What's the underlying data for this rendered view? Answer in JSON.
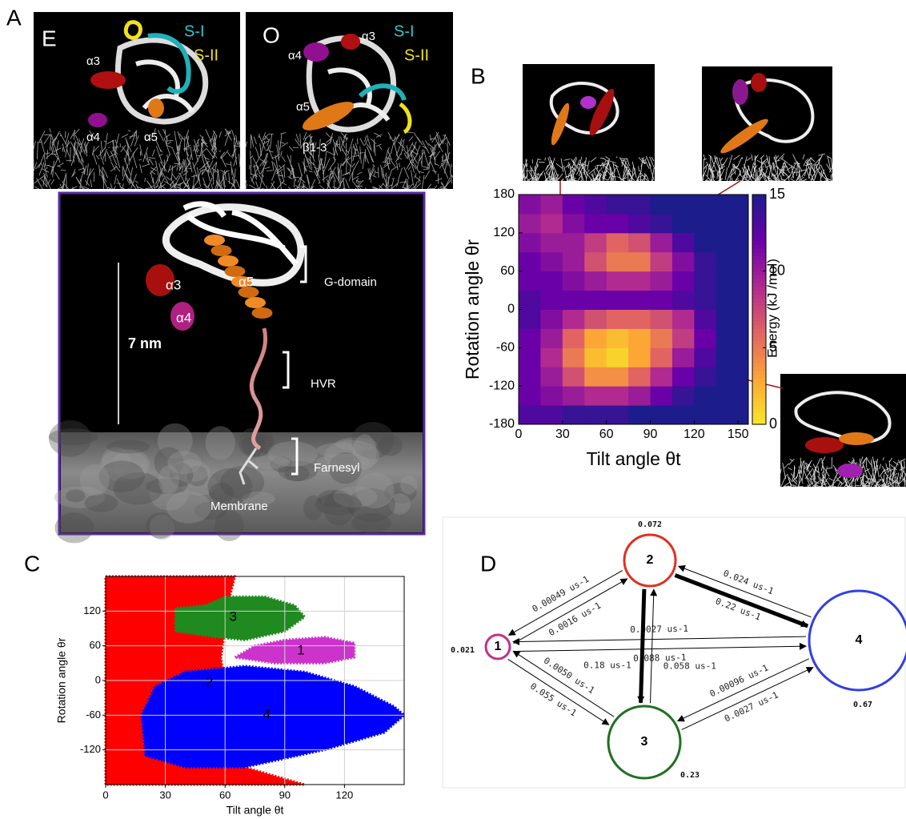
{
  "panel_labels": {
    "a": "A",
    "b": "B",
    "c": "C",
    "d": "D"
  },
  "panel_a": {
    "inset_e": {
      "state": "E",
      "helices": [
        "α3",
        "α4",
        "α5"
      ],
      "switch_1": "S-I",
      "switch_2": "S-II"
    },
    "inset_o": {
      "state": "O",
      "helices": [
        "α4",
        "α3",
        "α5"
      ],
      "strands": "β1-3",
      "switch_1": "S-I",
      "switch_2": "S-II"
    },
    "main": {
      "helices": [
        "α3",
        "α4",
        "α5"
      ],
      "scale": "7 nm",
      "regions": [
        "G-domain",
        "HVR",
        "Farnesyl"
      ],
      "membrane": "Membrane"
    }
  },
  "chart_data": [
    {
      "type": "heatmap",
      "xlabel": "Tilt angle θt",
      "ylabel": "Rotation angle θr",
      "xbins": [
        0,
        15,
        30,
        45,
        60,
        75,
        90,
        105,
        120,
        135,
        150,
        157
      ],
      "ybins": [
        -180,
        -150,
        -120,
        -90,
        -60,
        -30,
        0,
        30,
        60,
        90,
        120,
        150,
        180
      ],
      "z": [
        [
          13,
          13,
          14,
          14,
          14,
          15,
          15,
          15,
          15,
          15,
          15
        ],
        [
          12,
          11,
          10,
          9,
          9,
          10,
          12,
          14,
          15,
          15,
          15
        ],
        [
          12,
          10,
          7,
          4,
          4,
          6,
          9,
          12,
          14,
          15,
          15
        ],
        [
          12,
          9,
          5,
          2,
          1,
          3,
          6,
          10,
          13,
          15,
          15
        ],
        [
          12,
          10,
          6,
          3,
          2,
          3,
          5,
          8,
          12,
          15,
          15
        ],
        [
          13,
          11,
          9,
          7,
          6,
          6,
          7,
          9,
          13,
          15,
          15
        ],
        [
          13,
          12,
          12,
          12,
          12,
          12,
          12,
          13,
          14,
          15,
          15
        ],
        [
          12,
          12,
          11,
          10,
          9,
          9,
          10,
          12,
          14,
          15,
          15
        ],
        [
          12,
          11,
          10,
          7,
          5,
          5,
          8,
          11,
          14,
          15,
          15
        ],
        [
          11,
          10,
          10,
          8,
          6,
          7,
          10,
          13,
          15,
          15,
          15
        ],
        [
          10,
          9,
          11,
          12,
          12,
          13,
          14,
          15,
          15,
          15,
          15
        ],
        [
          11,
          10,
          12,
          13,
          14,
          14,
          15,
          15,
          15,
          15,
          15
        ]
      ],
      "xlim": [
        0,
        157
      ],
      "ylim": [
        -180,
        180
      ],
      "xticks": [
        0,
        30,
        60,
        90,
        120,
        150
      ],
      "yticks": [
        -180,
        -120,
        -60,
        0,
        60,
        120,
        180
      ],
      "clim": [
        0,
        15
      ],
      "cticks": [
        0,
        5,
        10,
        15
      ],
      "clabel": "Energy (kJ /mol)",
      "colormap": [
        "#f7e825",
        "#fca636",
        "#e16462",
        "#b12a90",
        "#6a00a8",
        "#1d1c8c"
      ]
    },
    {
      "type": "scatter",
      "xlabel": "Tilt angle θt",
      "ylabel": "Rotation angle θr",
      "xlim": [
        0,
        150
      ],
      "ylim": [
        -180,
        180
      ],
      "xticks": [
        0,
        30,
        60,
        90,
        120
      ],
      "yticks": [
        -120,
        -60,
        0,
        60,
        120
      ],
      "grid": true,
      "series": [
        {
          "name": "2",
          "color": "#ff0000",
          "x": [
            0,
            0,
            65,
            62,
            58,
            62,
            70,
            100
          ],
          "y": [
            -180,
            180,
            180,
            140,
            40,
            -60,
            -150,
            -180
          ]
        },
        {
          "name": "4",
          "color": "#0000ff",
          "x": [
            20,
            18,
            25,
            40,
            70,
            100,
            125,
            145,
            150,
            140,
            110,
            70,
            40
          ],
          "y": [
            -130,
            -60,
            -10,
            15,
            25,
            15,
            -10,
            -45,
            -60,
            -90,
            -120,
            -150,
            -150
          ]
        },
        {
          "name": "3",
          "color": "#1f8a1f",
          "x": [
            35,
            35,
            50,
            60,
            80,
            95,
            100,
            90,
            70,
            55,
            35
          ],
          "y": [
            100,
            125,
            130,
            145,
            145,
            130,
            110,
            85,
            70,
            75,
            85
          ]
        },
        {
          "name": "1",
          "color": "#cc33cc",
          "x": [
            65,
            75,
            90,
            110,
            125,
            125,
            110,
            85
          ],
          "y": [
            40,
            60,
            70,
            75,
            65,
            40,
            30,
            30
          ]
        }
      ]
    }
  ],
  "panel_d": {
    "nodes": [
      {
        "label": "1",
        "population": "0.021"
      },
      {
        "label": "2",
        "population": "0.072"
      },
      {
        "label": "3",
        "population": "0.23"
      },
      {
        "label": "4",
        "population": "0.67"
      }
    ],
    "edges": [
      "0.0016 us-1",
      "0.00049 us-1",
      "0.22 us-1",
      "0.024 us-1",
      "0.088 us-1",
      "0.0027 us-1",
      "0.058 us-1",
      "0.18 us-1",
      "0.055 us-1",
      "0.0050 us-1",
      "0.0027 us-1",
      "0.00096 us-1"
    ]
  }
}
